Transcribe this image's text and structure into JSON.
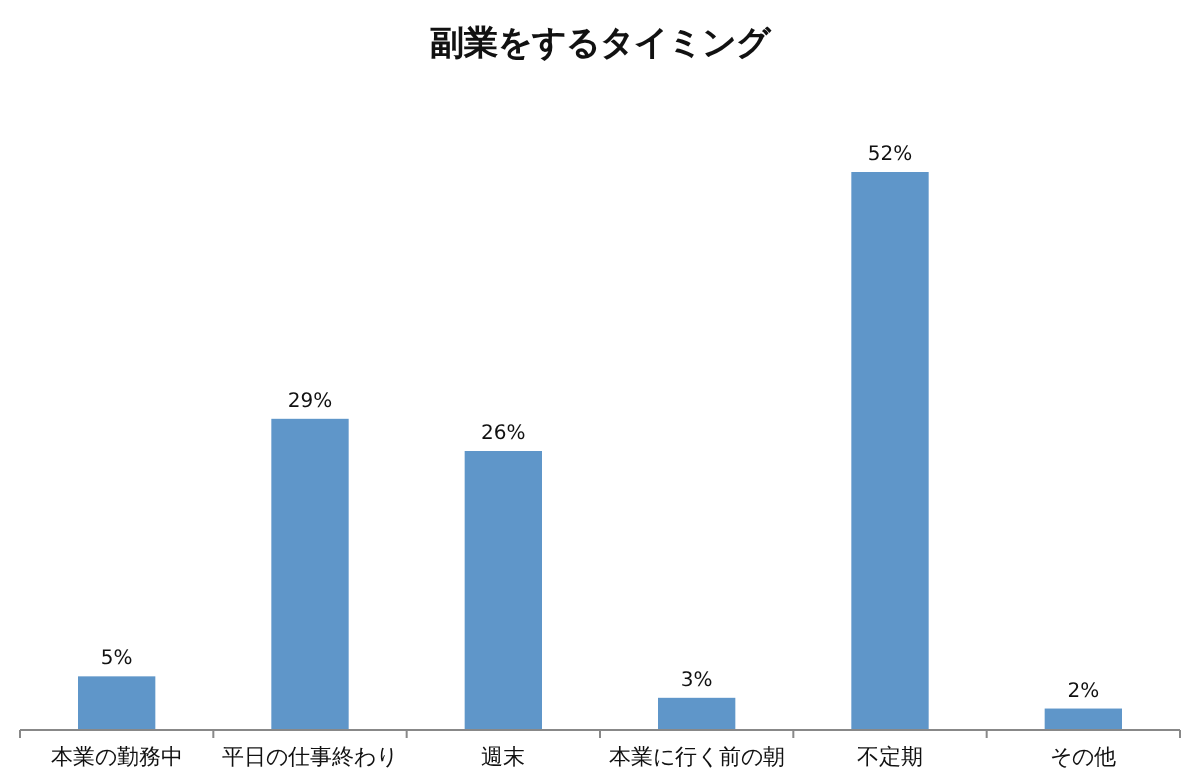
{
  "chart_data": {
    "type": "bar",
    "title": "副業をするタイミング",
    "categories": [
      "本業の勤務中",
      "平日の仕事終わり",
      "週末",
      "本業に行く前の朝",
      "不定期",
      "その他"
    ],
    "values": [
      5,
      29,
      26,
      3,
      52,
      2
    ],
    "value_labels": [
      "5%",
      "29%",
      "26%",
      "3%",
      "52%",
      "2%"
    ],
    "color": "#5f96c9",
    "grid": false
  }
}
